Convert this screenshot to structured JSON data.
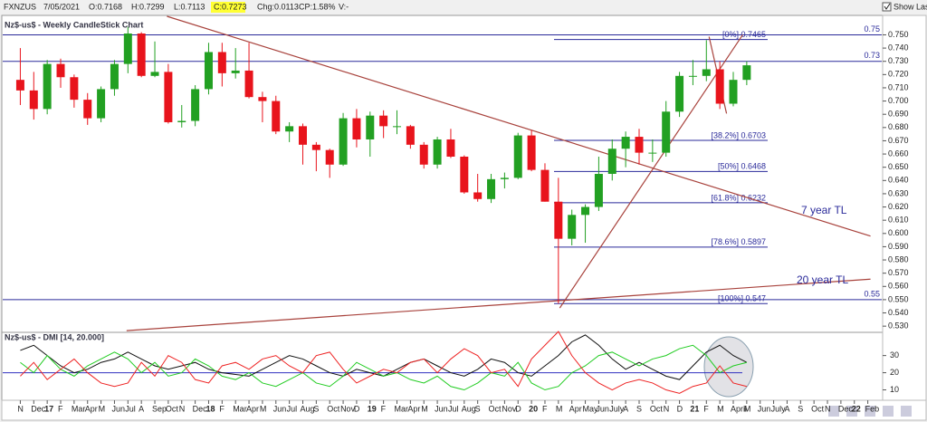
{
  "header": {
    "symbol": "FXNZUS",
    "date": "7/05/2021",
    "open": "O:0.7168",
    "high": "H:0.7299",
    "low": "L:0.7113",
    "close": "C:0.7273",
    "change": "Chg:0.0113",
    "change_percent": "CP:1.58%",
    "volume": "V:-",
    "show_last": "Show Last"
  },
  "chart_data": [
    {
      "type": "candlestick",
      "title": "Nz$-us$ - Weekly CandleStick Chart",
      "up_color": "#22a022",
      "down_color": "#e8141c",
      "categories": [
        "N",
        "Dec",
        "17",
        "F",
        "Mar",
        "Apr",
        "M",
        "Jun",
        "Jul",
        "A",
        "Sep",
        "Oct",
        "N",
        "Dec",
        "18",
        "F",
        "Mar",
        "Apr",
        "M",
        "Jun",
        "Jul",
        "Aug",
        "S",
        "Oct",
        "Nov",
        "D",
        "19",
        "F",
        "Mar",
        "Apr",
        "M",
        "Jun",
        "Jul",
        "Aug",
        "S",
        "Oct",
        "Nov",
        "D",
        "20",
        "F",
        "M",
        "Apr",
        "May",
        "Jun",
        "July",
        "A",
        "S",
        "Oct",
        "N",
        "D",
        "21",
        "F",
        "M",
        "April",
        "M",
        "Jun",
        "July",
        "A",
        "S",
        "Oct",
        "N",
        "Dec",
        "22",
        "Feb"
      ],
      "values": [
        [
          0.716,
          0.74,
          0.697,
          0.708
        ],
        [
          0.708,
          0.722,
          0.686,
          0.694
        ],
        [
          0.694,
          0.731,
          0.69,
          0.728
        ],
        [
          0.728,
          0.732,
          0.71,
          0.718
        ],
        [
          0.718,
          0.72,
          0.695,
          0.701
        ],
        [
          0.701,
          0.706,
          0.682,
          0.687
        ],
        [
          0.687,
          0.711,
          0.684,
          0.709
        ],
        [
          0.709,
          0.731,
          0.704,
          0.728
        ],
        [
          0.728,
          0.756,
          0.721,
          0.751
        ],
        [
          0.751,
          0.752,
          0.718,
          0.719
        ],
        [
          0.719,
          0.745,
          0.718,
          0.722
        ],
        [
          0.722,
          0.728,
          0.683,
          0.684
        ],
        [
          0.684,
          0.697,
          0.68,
          0.685
        ],
        [
          0.685,
          0.712,
          0.681,
          0.709
        ],
        [
          0.709,
          0.744,
          0.705,
          0.737
        ],
        [
          0.737,
          0.744,
          0.711,
          0.721
        ],
        [
          0.721,
          0.74,
          0.717,
          0.723
        ],
        [
          0.723,
          0.744,
          0.702,
          0.703
        ],
        [
          0.703,
          0.707,
          0.684,
          0.7
        ],
        [
          0.7,
          0.704,
          0.675,
          0.677
        ],
        [
          0.677,
          0.684,
          0.669,
          0.681
        ],
        [
          0.681,
          0.683,
          0.652,
          0.667
        ],
        [
          0.667,
          0.669,
          0.647,
          0.663
        ],
        [
          0.663,
          0.664,
          0.642,
          0.652
        ],
        [
          0.652,
          0.691,
          0.651,
          0.687
        ],
        [
          0.687,
          0.694,
          0.665,
          0.671
        ],
        [
          0.671,
          0.692,
          0.658,
          0.689
        ],
        [
          0.689,
          0.693,
          0.672,
          0.681
        ],
        [
          0.681,
          0.693,
          0.675,
          0.681
        ],
        [
          0.681,
          0.682,
          0.664,
          0.667
        ],
        [
          0.667,
          0.669,
          0.649,
          0.652
        ],
        [
          0.652,
          0.673,
          0.649,
          0.671
        ],
        [
          0.671,
          0.679,
          0.657,
          0.658
        ],
        [
          0.658,
          0.659,
          0.63,
          0.631
        ],
        [
          0.631,
          0.645,
          0.624,
          0.626
        ],
        [
          0.626,
          0.645,
          0.623,
          0.641
        ],
        [
          0.641,
          0.646,
          0.634,
          0.642
        ],
        [
          0.642,
          0.676,
          0.641,
          0.674
        ],
        [
          0.674,
          0.678,
          0.647,
          0.648
        ],
        [
          0.648,
          0.653,
          0.624,
          0.624
        ],
        [
          0.624,
          0.642,
          0.547,
          0.596
        ],
        [
          0.596,
          0.618,
          0.591,
          0.614
        ],
        [
          0.614,
          0.622,
          0.593,
          0.62
        ],
        [
          0.62,
          0.658,
          0.617,
          0.645
        ],
        [
          0.645,
          0.671,
          0.64,
          0.664
        ],
        [
          0.664,
          0.677,
          0.65,
          0.673
        ],
        [
          0.673,
          0.679,
          0.652,
          0.661
        ],
        [
          0.661,
          0.671,
          0.654,
          0.661
        ],
        [
          0.661,
          0.7,
          0.658,
          0.692
        ],
        [
          0.692,
          0.722,
          0.688,
          0.719
        ],
        [
          0.719,
          0.731,
          0.712,
          0.719
        ],
        [
          0.719,
          0.746,
          0.715,
          0.724
        ],
        [
          0.724,
          0.73,
          0.694,
          0.698
        ],
        [
          0.698,
          0.722,
          0.696,
          0.716
        ],
        [
          0.716,
          0.73,
          0.712,
          0.727
        ],
        null,
        null,
        null,
        null,
        null,
        null,
        null,
        null,
        null
      ],
      "ylim": [
        0.526,
        0.764
      ],
      "yticks": [
        {
          "value": 0.53,
          "label": "0.530"
        },
        {
          "value": 0.54,
          "label": "0.540"
        },
        {
          "value": 0.55,
          "label": "0.550"
        },
        {
          "value": 0.56,
          "label": "0.560"
        },
        {
          "value": 0.57,
          "label": "0.570"
        },
        {
          "value": 0.58,
          "label": "0.580"
        },
        {
          "value": 0.59,
          "label": "0.590"
        },
        {
          "value": 0.6,
          "label": "0.600"
        },
        {
          "value": 0.61,
          "label": "0.610"
        },
        {
          "value": 0.62,
          "label": "0.620"
        },
        {
          "value": 0.63,
          "label": "0.630"
        },
        {
          "value": 0.64,
          "label": "0.640"
        },
        {
          "value": 0.65,
          "label": "0.650"
        },
        {
          "value": 0.66,
          "label": "0.660"
        },
        {
          "value": 0.67,
          "label": "0.670"
        },
        {
          "value": 0.68,
          "label": "0.680"
        },
        {
          "value": 0.69,
          "label": "0.690"
        },
        {
          "value": 0.7,
          "label": "0.700"
        },
        {
          "value": 0.71,
          "label": "0.710"
        },
        {
          "value": 0.72,
          "label": "0.720"
        },
        {
          "value": 0.73,
          "label": "0.730"
        },
        {
          "value": 0.74,
          "label": "0.740"
        },
        {
          "value": 0.75,
          "label": "0.750"
        }
      ],
      "hlines": [
        0.75,
        0.73,
        0.55
      ],
      "hline_color": "#2a2a9a",
      "fib_levels": [
        {
          "value": 0.7465,
          "label": "[0%] 0.7465"
        },
        {
          "value": 0.6703,
          "label": "[38.2%] 0.6703"
        },
        {
          "value": 0.6468,
          "label": "[50%] 0.6468"
        },
        {
          "value": 0.6232,
          "label": "[61.8%] 0.6232"
        },
        {
          "value": 0.5897,
          "label": "[78.6%] 0.5897"
        },
        {
          "value": 0.547,
          "label": "[100%] 0.547"
        }
      ],
      "trendlines": [
        {
          "label": "7 year TL",
          "points": [
            [
              10.9,
              0.764
            ],
            [
              63.2,
              0.598
            ]
          ]
        },
        {
          "label": "20 year TL",
          "points": [
            [
              7.9,
              0.5266
            ],
            [
              63.2,
              0.5655
            ]
          ]
        },
        {
          "points": [
            [
              40.1,
              0.5437
            ],
            [
              53.7,
              0.75
            ]
          ]
        },
        {
          "points": [
            [
              51.2,
              0.7486
            ],
            [
              52.5,
              0.6906
            ]
          ]
        }
      ],
      "trendline_color": "#a8423c"
    },
    {
      "type": "line",
      "title": "Nz$-us$ - DMI [14, 20.000]",
      "series": [
        {
          "color": "#111111",
          "values": [
            33,
            36,
            30,
            24,
            20,
            22,
            26,
            28,
            32,
            28,
            24,
            22,
            24,
            26,
            22,
            20,
            19,
            18,
            22,
            26,
            30,
            28,
            24,
            20,
            18,
            22,
            20,
            18,
            22,
            26,
            28,
            24,
            20,
            18,
            22,
            28,
            26,
            20,
            18,
            24,
            30,
            38,
            42,
            36,
            28,
            22,
            26,
            22,
            18,
            16,
            24,
            32,
            36,
            30,
            26,
            null,
            null,
            null,
            null,
            null,
            null,
            null,
            null,
            null
          ]
        },
        {
          "color": "#22cc22",
          "values": [
            26,
            20,
            30,
            22,
            18,
            24,
            28,
            32,
            28,
            20,
            26,
            18,
            20,
            28,
            24,
            18,
            16,
            20,
            14,
            12,
            16,
            20,
            14,
            12,
            18,
            26,
            22,
            18,
            20,
            16,
            14,
            18,
            12,
            10,
            14,
            20,
            18,
            26,
            14,
            10,
            12,
            20,
            24,
            30,
            32,
            28,
            24,
            28,
            30,
            34,
            36,
            30,
            20,
            24,
            26,
            null,
            null,
            null,
            null,
            null,
            null,
            null,
            null,
            null
          ]
        },
        {
          "color": "#ee2222",
          "values": [
            18,
            26,
            16,
            22,
            28,
            20,
            14,
            12,
            14,
            26,
            18,
            30,
            26,
            16,
            14,
            24,
            26,
            22,
            28,
            30,
            24,
            20,
            30,
            32,
            22,
            14,
            18,
            22,
            20,
            26,
            28,
            20,
            28,
            34,
            30,
            20,
            22,
            12,
            28,
            36,
            44,
            30,
            20,
            14,
            10,
            14,
            16,
            14,
            10,
            8,
            12,
            14,
            24,
            14,
            12,
            null,
            null,
            null,
            null,
            null,
            null,
            null,
            null,
            null
          ]
        }
      ],
      "ylim": [
        5,
        43
      ],
      "yticks": [
        10,
        20,
        30
      ],
      "hlines": [
        20
      ],
      "hline_color": "#3030c0"
    }
  ]
}
